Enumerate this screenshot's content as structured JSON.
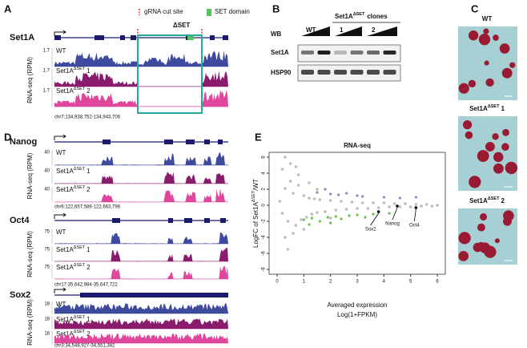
{
  "A": {
    "label": "A",
    "legend_cut": "gRNA cut site",
    "legend_set": "SET domain",
    "deletion": "ΔSET",
    "gene": "Set1A",
    "ylabel": "RNA-seq (RPM)",
    "tracks": [
      {
        "scale": 1.7,
        "label": "WT"
      },
      {
        "scale": 1.7,
        "label": "Set1A",
        "sup": "ΔSET",
        "suffix": "1"
      },
      {
        "scale": 1.7,
        "label": "Set1A",
        "sup": "ΔSET",
        "suffix": "2"
      }
    ],
    "coords": "chr7:134,938,752-134,943,706"
  },
  "B": {
    "label": "B",
    "wb": "WB",
    "clones": "Set1A",
    "clones_sup": "ΔSET",
    "clones_suffix": "clones",
    "lanes": [
      "WT",
      "1",
      "2"
    ],
    "rows": [
      "Set1A",
      "HSP90"
    ]
  },
  "C": {
    "label": "C",
    "images": [
      {
        "label": "WT"
      },
      {
        "label": "Set1A",
        "sup": "ΔSET",
        "suffix": "1"
      },
      {
        "label": "Set1A",
        "sup": "ΔSET",
        "suffix": "2"
      }
    ]
  },
  "D": {
    "label": "D",
    "ylabel": "RNA-seq (RPM)",
    "genes": [
      {
        "name": "Nanog",
        "coords": "chr6:122,657,586-122,663,796",
        "tracks": [
          {
            "scale": 40,
            "label": "WT"
          },
          {
            "scale": 40,
            "label": "Set1A",
            "sup": "ΔSET",
            "suffix": "1"
          },
          {
            "scale": 40,
            "label": "Set1A",
            "sup": "ΔSET",
            "suffix": "2"
          }
        ]
      },
      {
        "name": "Oct4",
        "coords": "chr17:35,642,984-35,647,722",
        "tracks": [
          {
            "scale": 75,
            "label": "WT"
          },
          {
            "scale": 75,
            "label": "Set1A",
            "sup": "ΔSET",
            "suffix": "1"
          },
          {
            "scale": 75,
            "label": "Set1A",
            "sup": "ΔSET",
            "suffix": "2"
          }
        ]
      },
      {
        "name": "Sox2",
        "coords": "chr3:34,548,927-34,551,382",
        "tracks": [
          {
            "scale": 18,
            "label": "WT"
          },
          {
            "scale": 18,
            "label": "Set1A",
            "sup": "ΔSET",
            "suffix": "1"
          },
          {
            "scale": 18,
            "label": "Set1A",
            "sup": "ΔSET",
            "suffix": "2"
          }
        ]
      }
    ]
  },
  "E": {
    "label": "E",
    "chart_data": {
      "type": "scatter",
      "title": "RNA-seq",
      "xlabel": [
        "Averaged expression",
        "Log(1+FPKM)"
      ],
      "ylabel": {
        "pre": "LogFC of Set1A",
        "sup": "ΔSET",
        "post": "/WT"
      },
      "xlim": [
        -0.3,
        6.3
      ],
      "ylim": [
        -8.6,
        6.6
      ],
      "xticks": [
        0,
        1,
        2,
        3,
        4,
        5,
        6
      ],
      "yticks": [
        6,
        4,
        2,
        0,
        -2,
        -4,
        -6,
        -8
      ],
      "series": [
        {
          "color": "#bdbdbd",
          "x": [
            0.1,
            0.2,
            0.3,
            0.4,
            0.5,
            0.6,
            0.7,
            0.8,
            0.9,
            1.0,
            1.1,
            1.2,
            1.3,
            1.4,
            1.5,
            1.6,
            1.8,
            2.0,
            2.2,
            2.4,
            2.6,
            2.8,
            3.0,
            3.2,
            3.4,
            3.6,
            3.8,
            4.0,
            4.2,
            4.4,
            4.6,
            4.8,
            5.0,
            5.2,
            5.4,
            5.6,
            5.8,
            6.0,
            0.2,
            0.3,
            0.5,
            0.6,
            0.8,
            1.0,
            1.2,
            0.4,
            0.7,
            1.5,
            2.0,
            0.3
          ],
          "values": [
            0.5,
            -1.0,
            2.1,
            -2.0,
            3.0,
            1.5,
            -2.5,
            2.5,
            -1.8,
            1.2,
            -1.5,
            0.9,
            -1.1,
            0.8,
            -0.9,
            0.7,
            -0.8,
            0.6,
            -0.6,
            0.5,
            -0.5,
            0.4,
            -0.4,
            0.3,
            -0.4,
            0.3,
            -0.3,
            0.3,
            -0.2,
            0.2,
            -0.2,
            0.2,
            -0.2,
            0.1,
            -0.1,
            0.1,
            -0.1,
            0.0,
            4.5,
            -4.0,
            5.2,
            -3.5,
            3.8,
            -3.0,
            2.8,
            -5.5,
            4.8,
            2.0,
            -1.6,
            6.0
          ]
        },
        {
          "color": "#8f86c4",
          "x": [
            1.5,
            2.0,
            2.3,
            2.6,
            3.0,
            3.2,
            4.0,
            4.6,
            5.2,
            1.8
          ],
          "values": [
            1.6,
            1.4,
            1.3,
            1.5,
            1.2,
            1.1,
            1.0,
            0.9,
            1.0,
            2.0
          ]
        },
        {
          "color": "#6dbf4b",
          "x": [
            1.0,
            1.3,
            1.6,
            1.9,
            2.2,
            2.4,
            2.7,
            3.0,
            3.3,
            3.6,
            4.2,
            1.2,
            2.0
          ],
          "values": [
            -1.8,
            -1.6,
            -2.0,
            -1.5,
            -1.4,
            -1.7,
            -1.3,
            -1.2,
            -1.5,
            -1.1,
            -1.0,
            -2.4,
            -2.2
          ]
        }
      ],
      "annotations": [
        {
          "text": "Sox2",
          "x": 3.8,
          "y": -0.8
        },
        {
          "text": "Nanog",
          "x": 4.5,
          "y": -0.1
        },
        {
          "text": "Oct4",
          "x": 5.2,
          "y": -0.3
        }
      ]
    }
  }
}
